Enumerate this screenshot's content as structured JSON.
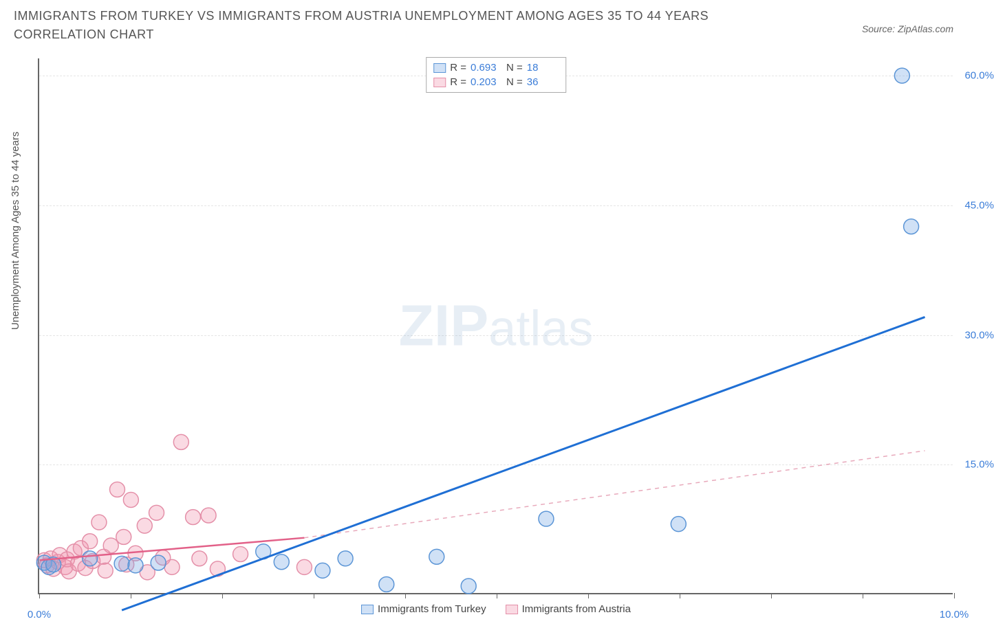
{
  "title": "IMMIGRANTS FROM TURKEY VS IMMIGRANTS FROM AUSTRIA UNEMPLOYMENT AMONG AGES 35 TO 44 YEARS CORRELATION CHART",
  "source": "Source: ZipAtlas.com",
  "y_axis_label": "Unemployment Among Ages 35 to 44 years",
  "watermark": {
    "bold": "ZIP",
    "light": "atlas"
  },
  "chart": {
    "type": "scatter",
    "xlim": [
      0,
      10
    ],
    "ylim": [
      0,
      62
    ],
    "x_tick_positions": [
      0,
      1,
      2,
      3,
      4,
      5,
      6,
      7,
      8,
      9,
      10
    ],
    "x_tick_labels": [
      {
        "x": 0.0,
        "label": "0.0%"
      },
      {
        "x": 10.0,
        "label": "10.0%"
      }
    ],
    "y_gridlines": [
      15,
      30,
      45,
      60
    ],
    "y_tick_labels": [
      {
        "y": 15,
        "label": "15.0%"
      },
      {
        "y": 30,
        "label": "30.0%"
      },
      {
        "y": 45,
        "label": "45.0%"
      },
      {
        "y": 60,
        "label": "60.0%"
      }
    ],
    "background_color": "#ffffff",
    "grid_color": "#e5e5e5",
    "axis_color": "#666666"
  },
  "series": {
    "turkey": {
      "name": "Immigrants from Turkey",
      "color_fill": "rgba(120,170,230,0.35)",
      "color_stroke": "#5b95d6",
      "marker_radius": 11,
      "R": "0.693",
      "N": "18",
      "trend": {
        "solid": {
          "x1": 0.9,
          "y1": -2,
          "x2": 9.7,
          "y2": 32
        },
        "color": "#1f6fd4",
        "width": 3
      },
      "points": [
        {
          "x": 0.05,
          "y": 3.5
        },
        {
          "x": 0.1,
          "y": 3.0
        },
        {
          "x": 0.15,
          "y": 3.3
        },
        {
          "x": 0.55,
          "y": 4.0
        },
        {
          "x": 0.9,
          "y": 3.4
        },
        {
          "x": 1.05,
          "y": 3.2
        },
        {
          "x": 1.3,
          "y": 3.5
        },
        {
          "x": 2.45,
          "y": 4.8
        },
        {
          "x": 2.65,
          "y": 3.6
        },
        {
          "x": 3.1,
          "y": 2.6
        },
        {
          "x": 3.35,
          "y": 4.0
        },
        {
          "x": 3.8,
          "y": 1.0
        },
        {
          "x": 4.35,
          "y": 4.2
        },
        {
          "x": 4.7,
          "y": 0.8
        },
        {
          "x": 5.55,
          "y": 8.6
        },
        {
          "x": 7.0,
          "y": 8.0
        },
        {
          "x": 9.55,
          "y": 42.5
        },
        {
          "x": 9.45,
          "y": 60.0
        }
      ]
    },
    "austria": {
      "name": "Immigrants from Austria",
      "color_fill": "rgba(240,150,175,0.35)",
      "color_stroke": "#e48fa8",
      "marker_radius": 11,
      "R": "0.203",
      "N": "36",
      "trend": {
        "solid": {
          "x1": 0.0,
          "y1": 3.8,
          "x2": 2.9,
          "y2": 6.4
        },
        "dashed": {
          "x1": 2.9,
          "y1": 6.4,
          "x2": 9.7,
          "y2": 16.5
        },
        "color_solid": "#e26088",
        "color_dashed": "#e8a9bb",
        "width": 2.5
      },
      "points": [
        {
          "x": 0.05,
          "y": 3.8
        },
        {
          "x": 0.08,
          "y": 3.2
        },
        {
          "x": 0.12,
          "y": 4.0
        },
        {
          "x": 0.15,
          "y": 2.8
        },
        {
          "x": 0.2,
          "y": 3.6
        },
        {
          "x": 0.22,
          "y": 4.4
        },
        {
          "x": 0.28,
          "y": 3.0
        },
        {
          "x": 0.3,
          "y": 3.9
        },
        {
          "x": 0.32,
          "y": 2.5
        },
        {
          "x": 0.38,
          "y": 4.8
        },
        {
          "x": 0.42,
          "y": 3.4
        },
        {
          "x": 0.45,
          "y": 5.2
        },
        {
          "x": 0.5,
          "y": 2.9
        },
        {
          "x": 0.55,
          "y": 6.0
        },
        {
          "x": 0.58,
          "y": 3.7
        },
        {
          "x": 0.65,
          "y": 8.2
        },
        {
          "x": 0.7,
          "y": 4.2
        },
        {
          "x": 0.72,
          "y": 2.6
        },
        {
          "x": 0.78,
          "y": 5.5
        },
        {
          "x": 0.85,
          "y": 12.0
        },
        {
          "x": 0.92,
          "y": 6.5
        },
        {
          "x": 0.95,
          "y": 3.3
        },
        {
          "x": 1.0,
          "y": 10.8
        },
        {
          "x": 1.05,
          "y": 4.6
        },
        {
          "x": 1.15,
          "y": 7.8
        },
        {
          "x": 1.18,
          "y": 2.4
        },
        {
          "x": 1.28,
          "y": 9.3
        },
        {
          "x": 1.35,
          "y": 4.1
        },
        {
          "x": 1.45,
          "y": 3.0
        },
        {
          "x": 1.55,
          "y": 17.5
        },
        {
          "x": 1.68,
          "y": 8.8
        },
        {
          "x": 1.75,
          "y": 4.0
        },
        {
          "x": 1.85,
          "y": 9.0
        },
        {
          "x": 1.95,
          "y": 2.8
        },
        {
          "x": 2.2,
          "y": 4.5
        },
        {
          "x": 2.9,
          "y": 3.0
        }
      ]
    }
  },
  "stat_labels": {
    "R": "R =",
    "N": "N ="
  },
  "legend": {
    "turkey": "Immigrants from Turkey",
    "austria": "Immigrants from Austria"
  }
}
